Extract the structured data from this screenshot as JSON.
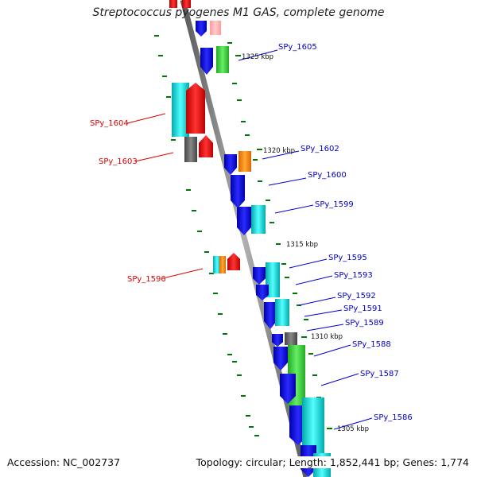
{
  "title": "Streptococcus pyogenes M1 GAS, complete genome",
  "accession_text": "Accession: NC_002737",
  "summary_text": "Topology: circular; Length: 1,852,441 bp; Genes: 1,774",
  "colors": {
    "backbone": "#808080",
    "tick": "#007700",
    "label_blue": "#0000cc",
    "label_red": "#dd0000",
    "blue": "#0000ee",
    "cyan": "#00cccc",
    "red": "#ee0000",
    "green": "#33cc33",
    "orange": "#ff8800",
    "gray": "#606060",
    "pink": "#ffaaaa"
  },
  "kbp_labels": [
    "1325 kbp",
    "1320 kbp",
    "1315 kbp",
    "1310 kbp",
    "1305 kbp"
  ],
  "gene_labels": [
    {
      "text": "SPy_1605",
      "strand": "minus"
    },
    {
      "text": "SPy_1604",
      "strand": "plus"
    },
    {
      "text": "SPy_1603",
      "strand": "plus"
    },
    {
      "text": "SPy_1602",
      "strand": "minus"
    },
    {
      "text": "SPy_1600",
      "strand": "minus"
    },
    {
      "text": "SPy_1599",
      "strand": "minus"
    },
    {
      "text": "SPy_1596",
      "strand": "plus"
    },
    {
      "text": "SPy_1595",
      "strand": "minus"
    },
    {
      "text": "SPy_1593",
      "strand": "minus"
    },
    {
      "text": "SPy_1592",
      "strand": "minus"
    },
    {
      "text": "SPy_1591",
      "strand": "minus"
    },
    {
      "text": "SPy_1589",
      "strand": "minus"
    },
    {
      "text": "SPy_1588",
      "strand": "minus"
    },
    {
      "text": "SPy_1587",
      "strand": "minus"
    },
    {
      "text": "SPy_1586",
      "strand": "minus"
    }
  ]
}
